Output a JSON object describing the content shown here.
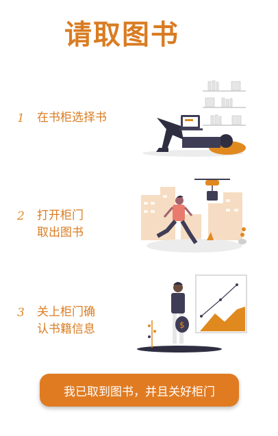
{
  "page": {
    "title": "请取图书",
    "accent_color": "#d97c22"
  },
  "steps": [
    {
      "number": "1",
      "lines": [
        "在书柜选择书"
      ],
      "illustration": "reading-person-with-bookshelf"
    },
    {
      "number": "2",
      "lines": [
        "打开柜门",
        "取出图书"
      ],
      "illustration": "running-person-drone-delivery"
    },
    {
      "number": "3",
      "lines": [
        "关上柜门确",
        "认书籍信息"
      ],
      "illustration": "person-with-money-bag-and-chart"
    }
  ],
  "confirm_button": {
    "label": "我已取到图书，并且关好柜门"
  }
}
